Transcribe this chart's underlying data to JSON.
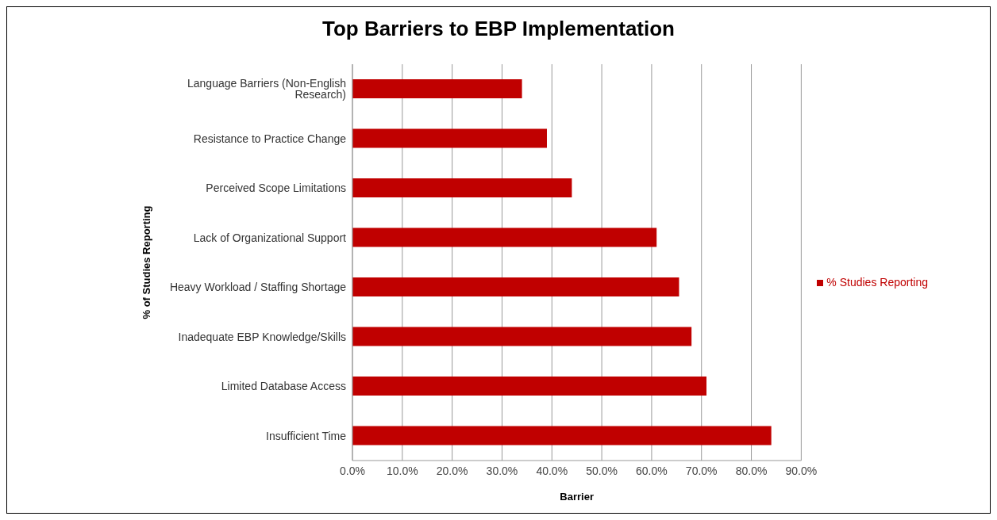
{
  "chart_data": {
    "type": "bar",
    "orientation": "horizontal",
    "title": "Top Barriers to EBP Implementation",
    "xlabel": "Barrier",
    "ylabel": "% of Studies Reporting",
    "categories": [
      "Language Barriers (Non-English Research)",
      "Resistance to Practice Change",
      "Perceived Scope Limitations",
      "Lack of Organizational Support",
      "Heavy Workload / Staffing Shortage",
      "Inadequate EBP Knowledge/Skills",
      "Limited Database Access",
      "Insufficient Time"
    ],
    "series": [
      {
        "name": "% Studies Reporting",
        "color": "#c00000",
        "values": [
          34,
          39,
          44,
          61,
          65.5,
          68,
          71,
          84
        ]
      }
    ],
    "xlim": [
      0,
      90
    ],
    "xticks": [
      {
        "value": 0,
        "label": "0.0%"
      },
      {
        "value": 10,
        "label": "10.0%"
      },
      {
        "value": 20,
        "label": "20.0%"
      },
      {
        "value": 30,
        "label": "30.0%"
      },
      {
        "value": 40,
        "label": "40.0%"
      },
      {
        "value": 50,
        "label": "50.0%"
      },
      {
        "value": 60,
        "label": "60.0%"
      },
      {
        "value": 70,
        "label": "70.0%"
      },
      {
        "value": 80,
        "label": "80.0%"
      },
      {
        "value": 90,
        "label": "90.0%"
      }
    ],
    "grid": "x",
    "legend": "right"
  }
}
